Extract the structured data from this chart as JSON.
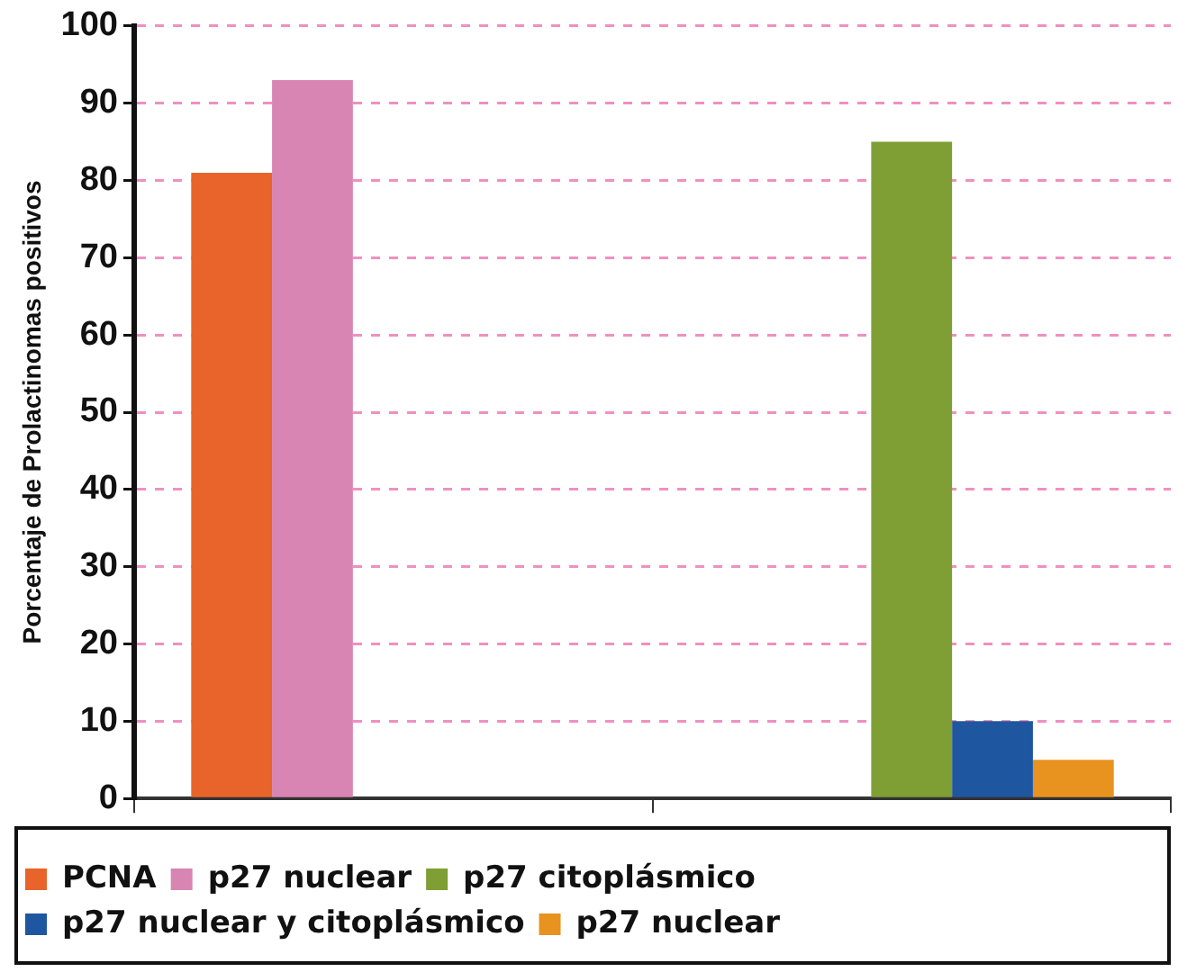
{
  "chart_data": {
    "type": "bar",
    "ylabel": "Porcentaje de Prolactinomas positivos",
    "categories": [
      null,
      null
    ],
    "series": [
      {
        "name": "PCNA",
        "color": "#e8642a",
        "values": [
          81,
          null
        ]
      },
      {
        "name": "p27 nuclear",
        "color": "#d985b4",
        "values": [
          93,
          null
        ]
      },
      {
        "name": "p27 citoplásmico",
        "color": "#7f9f34",
        "values": [
          null,
          85
        ]
      },
      {
        "name": "p27 nuclear y citoplásmico",
        "color": "#1f56a0",
        "values": [
          null,
          10
        ]
      },
      {
        "name": "p27 nuclear",
        "color": "#e8921f",
        "values": [
          null,
          5
        ]
      }
    ],
    "ylim": [
      0,
      100
    ],
    "yticks": [
      0,
      10,
      20,
      30,
      40,
      50,
      60,
      70,
      80,
      90,
      100
    ],
    "grid": "y",
    "legend": "bottom"
  }
}
